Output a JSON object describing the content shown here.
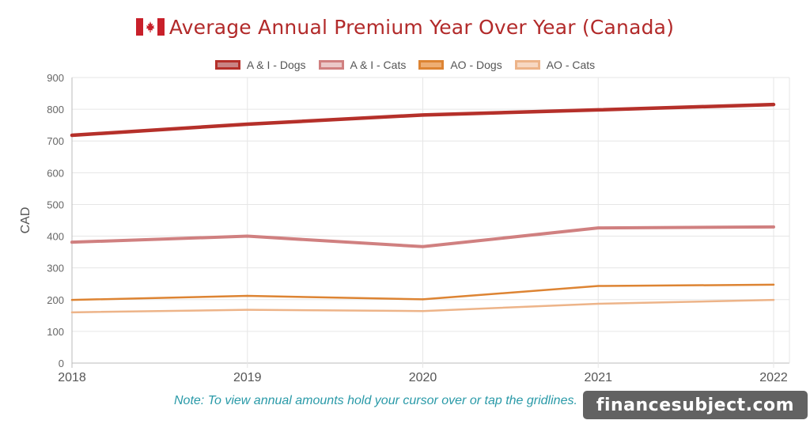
{
  "chart_data": {
    "type": "line",
    "title": "Average Annual Premium Year Over Year (Canada)",
    "ylabel": "CAD",
    "xlabel": "",
    "categories": [
      "2018",
      "2019",
      "2020",
      "2021",
      "2022"
    ],
    "ylim": [
      0,
      900
    ],
    "yticks": [
      0,
      100,
      200,
      300,
      400,
      500,
      600,
      700,
      800,
      900
    ],
    "grid": true,
    "legend_position": "top-center",
    "series": [
      {
        "name": "A & I - Dogs",
        "values": [
          718,
          753,
          782,
          798,
          815
        ],
        "color": "#b5302a",
        "fill": "#c98484"
      },
      {
        "name": "A & I - Cats",
        "values": [
          381,
          400,
          367,
          426,
          429
        ],
        "color": "#d08080",
        "fill": "#ebc8c8"
      },
      {
        "name": "AO - Dogs",
        "values": [
          199,
          212,
          201,
          243,
          247
        ],
        "color": "#dd8433",
        "fill": "#eeae73"
      },
      {
        "name": "AO - Cats",
        "values": [
          160,
          168,
          164,
          187,
          199
        ],
        "color": "#edb489",
        "fill": "#f7d8c2"
      }
    ]
  },
  "flag_icon": "canada-flag-icon",
  "note": "Note: To view annual amounts hold your cursor over or tap the gridlines.",
  "watermark": "financesubject.com"
}
